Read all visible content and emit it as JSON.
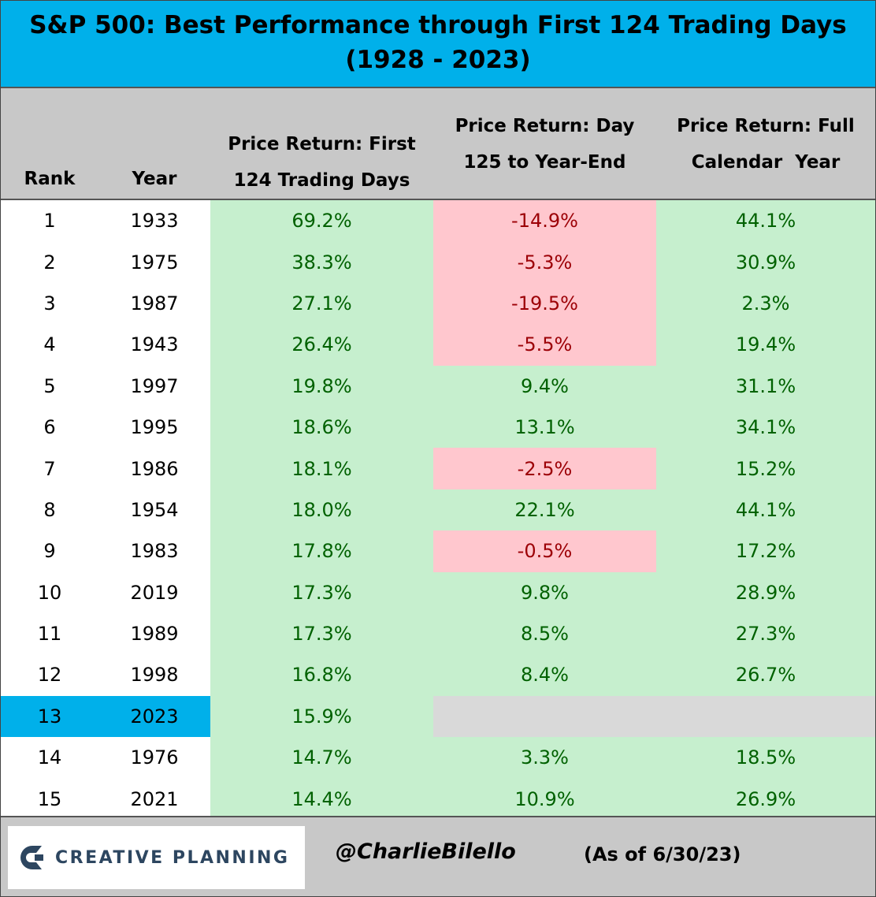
{
  "title": {
    "line1": "S&P 500: Best Performance through First 124 Trading Days",
    "line2": "(1928 - 2023)"
  },
  "columns": {
    "rank": "Rank",
    "year": "Year",
    "first": [
      "Price Return: First",
      "124 Trading Days"
    ],
    "rest": [
      "Price Return: Day",
      "125 to Year-End"
    ],
    "full": [
      "Price Return: Full",
      "Calendar  Year"
    ]
  },
  "rows": [
    {
      "rank": "1",
      "year": "1933",
      "first": "69.2%",
      "rest": "-14.9%",
      "full": "44.1%"
    },
    {
      "rank": "2",
      "year": "1975",
      "first": "38.3%",
      "rest": "-5.3%",
      "full": "30.9%"
    },
    {
      "rank": "3",
      "year": "1987",
      "first": "27.1%",
      "rest": "-19.5%",
      "full": "2.3%"
    },
    {
      "rank": "4",
      "year": "1943",
      "first": "26.4%",
      "rest": "-5.5%",
      "full": "19.4%"
    },
    {
      "rank": "5",
      "year": "1997",
      "first": "19.8%",
      "rest": "9.4%",
      "full": "31.1%"
    },
    {
      "rank": "6",
      "year": "1995",
      "first": "18.6%",
      "rest": "13.1%",
      "full": "34.1%"
    },
    {
      "rank": "7",
      "year": "1986",
      "first": "18.1%",
      "rest": "-2.5%",
      "full": "15.2%"
    },
    {
      "rank": "8",
      "year": "1954",
      "first": "18.0%",
      "rest": "22.1%",
      "full": "44.1%"
    },
    {
      "rank": "9",
      "year": "1983",
      "first": "17.8%",
      "rest": "-0.5%",
      "full": "17.2%"
    },
    {
      "rank": "10",
      "year": "2019",
      "first": "17.3%",
      "rest": "9.8%",
      "full": "28.9%"
    },
    {
      "rank": "11",
      "year": "1989",
      "first": "17.3%",
      "rest": "8.5%",
      "full": "27.3%"
    },
    {
      "rank": "12",
      "year": "1998",
      "first": "16.8%",
      "rest": "8.4%",
      "full": "26.7%"
    },
    {
      "rank": "13",
      "year": "2023",
      "first": "15.9%",
      "rest": "",
      "full": "",
      "highlight": true
    },
    {
      "rank": "14",
      "year": "1976",
      "first": "14.7%",
      "rest": "3.3%",
      "full": "18.5%"
    },
    {
      "rank": "15",
      "year": "2021",
      "first": "14.4%",
      "rest": "10.9%",
      "full": "26.9%"
    }
  ],
  "footer": {
    "logo_text": "CREATIVE PLANNING",
    "logo_icon": "creative-planning-logo-icon",
    "handle": "@CharlieBilello",
    "as_of": "(As of 6/30/23)"
  },
  "colors": {
    "title_bg": "#00b0ea",
    "header_bg": "#c8c8c8",
    "positive_bg": "#c6efce",
    "positive_fg": "#006100",
    "negative_bg": "#ffc7ce",
    "negative_fg": "#9c0006",
    "highlight_bg": "#00b0ea",
    "pending_bg": "#d9d9d9"
  }
}
